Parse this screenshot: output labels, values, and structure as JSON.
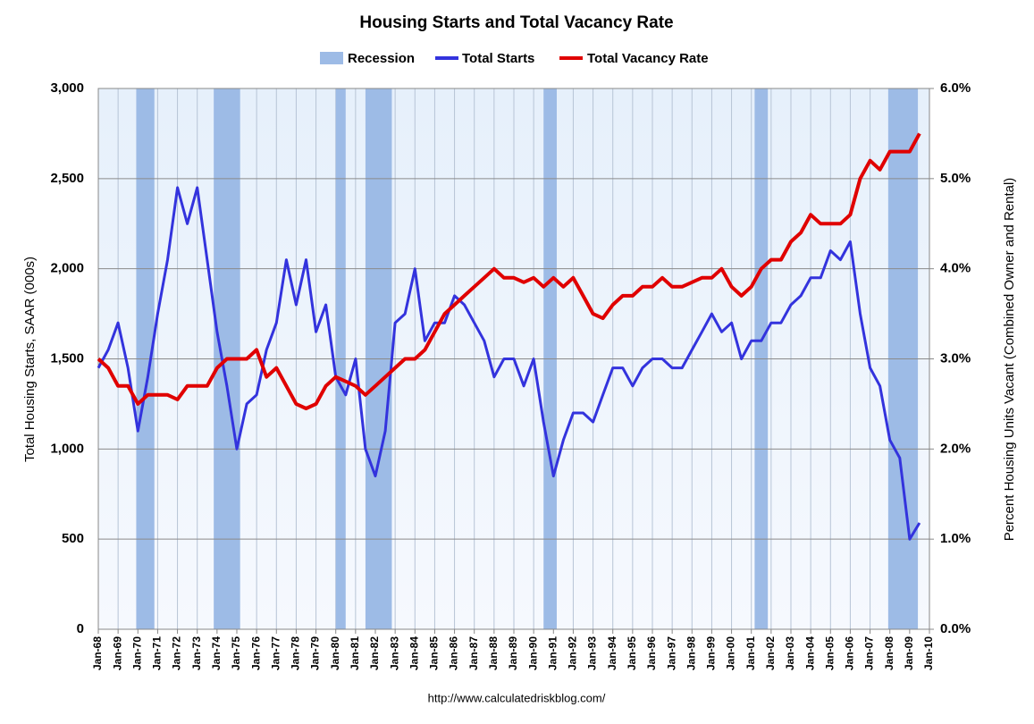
{
  "chart_data": {
    "type": "line",
    "title": "Housing Starts and Total Vacancy Rate",
    "ylabel": "Total Housing Starts, SAAR (000s)",
    "y2label": "Percent Housing Units Vacant (Combined Owner and Rental)",
    "source": "http://www.calculatedriskblog.com/",
    "recessions": {
      "name": "Recession",
      "color": "#9dbbe6",
      "periods": [
        [
          "Dec-69",
          "Nov-70"
        ],
        [
          "Nov-73",
          "Mar-75"
        ],
        [
          "Jan-80",
          "Jul-80"
        ],
        [
          "Jul-81",
          "Nov-82"
        ],
        [
          "Jul-90",
          "Mar-91"
        ],
        [
          "Mar-01",
          "Nov-01"
        ],
        [
          "Dec-07",
          "Jun-09"
        ]
      ]
    },
    "x": [
      "Jan-68",
      "Jul-68",
      "Jan-69",
      "Jul-69",
      "Jan-70",
      "Jul-70",
      "Jan-71",
      "Jul-71",
      "Jan-72",
      "Jul-72",
      "Jan-73",
      "Jul-73",
      "Jan-74",
      "Jul-74",
      "Jan-75",
      "Jul-75",
      "Jan-76",
      "Jul-76",
      "Jan-77",
      "Jul-77",
      "Jan-78",
      "Jul-78",
      "Jan-79",
      "Jul-79",
      "Jan-80",
      "Jul-80",
      "Jan-81",
      "Jul-81",
      "Jan-82",
      "Jul-82",
      "Jan-83",
      "Jul-83",
      "Jan-84",
      "Jul-84",
      "Jan-85",
      "Jul-85",
      "Jan-86",
      "Jul-86",
      "Jan-87",
      "Jul-87",
      "Jan-88",
      "Jul-88",
      "Jan-89",
      "Jul-89",
      "Jan-90",
      "Jul-90",
      "Jan-91",
      "Jul-91",
      "Jan-92",
      "Jul-92",
      "Jan-93",
      "Jul-93",
      "Jan-94",
      "Jul-94",
      "Jan-95",
      "Jul-95",
      "Jan-96",
      "Jul-96",
      "Jan-97",
      "Jul-97",
      "Jan-98",
      "Jul-98",
      "Jan-99",
      "Jul-99",
      "Jan-00",
      "Jul-00",
      "Jan-01",
      "Jul-01",
      "Jan-02",
      "Jul-02",
      "Jan-03",
      "Jul-03",
      "Jan-04",
      "Jul-04",
      "Jan-05",
      "Jul-05",
      "Jan-06",
      "Jul-06",
      "Jan-07",
      "Jul-07",
      "Jan-08",
      "Jul-08",
      "Jan-09",
      "Jul-09"
    ],
    "series": [
      {
        "name": "Total Starts",
        "color": "#3333dd",
        "axis": "y",
        "values": [
          1450,
          1550,
          1700,
          1450,
          1100,
          1400,
          1750,
          2050,
          2450,
          2250,
          2450,
          2050,
          1650,
          1350,
          1000,
          1250,
          1300,
          1550,
          1700,
          2050,
          1800,
          2050,
          1650,
          1800,
          1400,
          1300,
          1500,
          1000,
          850,
          1100,
          1700,
          1750,
          2000,
          1600,
          1700,
          1700,
          1850,
          1800,
          1700,
          1600,
          1400,
          1500,
          1500,
          1350,
          1500,
          1150,
          850,
          1050,
          1200,
          1200,
          1150,
          1300,
          1450,
          1450,
          1350,
          1450,
          1500,
          1500,
          1450,
          1450,
          1550,
          1650,
          1750,
          1650,
          1700,
          1500,
          1600,
          1600,
          1700,
          1700,
          1800,
          1850,
          1950,
          1950,
          2100,
          2050,
          2150,
          1750,
          1450,
          1350,
          1050,
          950,
          500,
          590
        ]
      },
      {
        "name": "Total Vacancy Rate",
        "color": "#e00000",
        "axis": "y2",
        "values": [
          3.0,
          2.9,
          2.7,
          2.7,
          2.5,
          2.6,
          2.6,
          2.6,
          2.55,
          2.7,
          2.7,
          2.7,
          2.9,
          3.0,
          3.0,
          3.0,
          3.1,
          2.8,
          2.9,
          2.7,
          2.5,
          2.45,
          2.5,
          2.7,
          2.8,
          2.75,
          2.7,
          2.6,
          2.7,
          2.8,
          2.9,
          3.0,
          3.0,
          3.1,
          3.3,
          3.5,
          3.6,
          3.7,
          3.8,
          3.9,
          4.0,
          3.9,
          3.9,
          3.85,
          3.9,
          3.8,
          3.9,
          3.8,
          3.9,
          3.7,
          3.5,
          3.45,
          3.6,
          3.7,
          3.7,
          3.8,
          3.8,
          3.9,
          3.8,
          3.8,
          3.85,
          3.9,
          3.9,
          4.0,
          3.8,
          3.7,
          3.8,
          4.0,
          4.1,
          4.1,
          4.3,
          4.4,
          4.6,
          4.5,
          4.5,
          4.5,
          4.6,
          5.0,
          5.2,
          5.1,
          5.3,
          5.3,
          5.3,
          5.5
        ]
      }
    ],
    "xlim": [
      "Jan-68",
      "Jan-10"
    ],
    "xticks": [
      "Jan-68",
      "Jan-69",
      "Jan-70",
      "Jan-71",
      "Jan-72",
      "Jan-73",
      "Jan-74",
      "Jan-75",
      "Jan-76",
      "Jan-77",
      "Jan-78",
      "Jan-79",
      "Jan-80",
      "Jan-81",
      "Jan-82",
      "Jan-83",
      "Jan-84",
      "Jan-85",
      "Jan-86",
      "Jan-87",
      "Jan-88",
      "Jan-89",
      "Jan-90",
      "Jan-91",
      "Jan-92",
      "Jan-93",
      "Jan-94",
      "Jan-95",
      "Jan-96",
      "Jan-97",
      "Jan-98",
      "Jan-99",
      "Jan-00",
      "Jan-01",
      "Jan-02",
      "Jan-03",
      "Jan-04",
      "Jan-05",
      "Jan-06",
      "Jan-07",
      "Jan-08",
      "Jan-09",
      "Jan-10"
    ],
    "ylim": [
      0,
      3000
    ],
    "yticks": [
      0,
      {
        "value": 500,
        "label": "500"
      },
      {
        "value": 1000,
        "label": "1,000"
      },
      {
        "value": 1500,
        "label": "1,500"
      },
      {
        "value": 2000,
        "label": "2,000"
      },
      {
        "value": 2500,
        "label": "2,500"
      },
      {
        "value": 3000,
        "label": "3,000"
      }
    ],
    "y2lim": [
      0,
      6
    ],
    "y2ticks": [
      {
        "value": 0,
        "label": "0.0%"
      },
      {
        "value": 1,
        "label": "1.0%"
      },
      {
        "value": 2,
        "label": "2.0%"
      },
      {
        "value": 3,
        "label": "3.0%"
      },
      {
        "value": 4,
        "label": "4.0%"
      },
      {
        "value": 5,
        "label": "5.0%"
      },
      {
        "value": 6,
        "label": "6.0%"
      }
    ],
    "grid": true
  }
}
